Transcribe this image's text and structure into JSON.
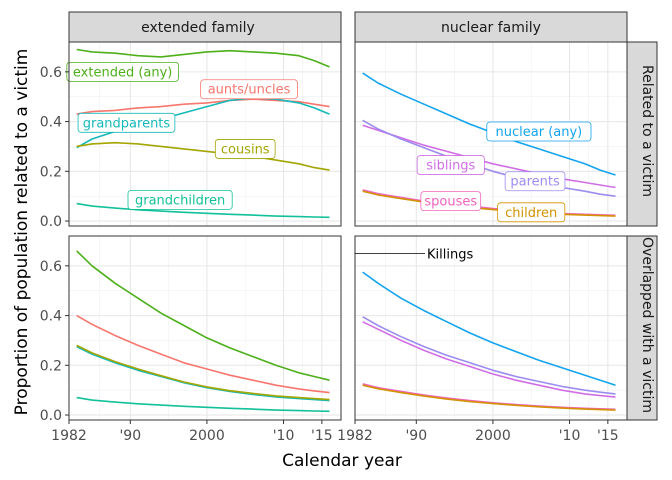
{
  "chart_data": {
    "type": "line",
    "ylabel": "Proportion of population related to a victim",
    "xlabel": "Calendar year",
    "xlim": [
      1982,
      2017.5
    ],
    "ylim": [
      -0.02,
      0.72
    ],
    "x_ticks": [
      {
        "value": 1982,
        "label": "1982"
      },
      {
        "value": 1990,
        "label": "'90"
      },
      {
        "value": 2000,
        "label": "2000"
      },
      {
        "value": 2010,
        "label": "'10"
      },
      {
        "value": 2015,
        "label": "'15"
      }
    ],
    "y_ticks": [
      {
        "value": 0.0,
        "label": "0.0"
      },
      {
        "value": 0.2,
        "label": "0.2"
      },
      {
        "value": 0.4,
        "label": "0.4"
      },
      {
        "value": 0.6,
        "label": "0.6"
      }
    ],
    "col_strips": [
      "extended family",
      "nuclear family"
    ],
    "row_strips": [
      "Related to a victim",
      "Overlapped with a victim"
    ],
    "vline_year": 1982,
    "annotation": {
      "text": "Killings",
      "x": 1982,
      "y": 0.65
    },
    "colors": {
      "extended": "#4daf1a",
      "aunts": "#f8766d",
      "grandparents": "#16b8b8",
      "cousins": "#a3a500",
      "grandchildren": "#12c09a",
      "nuclear": "#13a4f0",
      "siblings": "#d16ee6",
      "parents": "#9b8cf0",
      "spouses": "#f063c0",
      "children": "#d39200"
    },
    "panels": [
      {
        "id": "extended-related",
        "col": 0,
        "row": 0,
        "series": [
          {
            "name": "extended (any)",
            "color_key": "extended",
            "label": "extended (any)",
            "label_at": [
              1989,
              0.6
            ],
            "x": [
              1983,
              1985,
              1988,
              1991,
              1994,
              1997,
              2000,
              2003,
              2006,
              2009,
              2012,
              2014,
              2016
            ],
            "y": [
              0.69,
              0.68,
              0.675,
              0.665,
              0.66,
              0.67,
              0.68,
              0.685,
              0.68,
              0.675,
              0.665,
              0.645,
              0.62
            ]
          },
          {
            "name": "aunts/uncles",
            "color_key": "aunts",
            "label": "aunts/uncles",
            "label_at": [
              2005.5,
              0.53
            ],
            "x": [
              1983,
              1985,
              1988,
              1991,
              1994,
              1997,
              2000,
              2003,
              2006,
              2009,
              2012,
              2014,
              2016
            ],
            "y": [
              0.43,
              0.44,
              0.445,
              0.455,
              0.46,
              0.47,
              0.475,
              0.485,
              0.49,
              0.485,
              0.48,
              0.47,
              0.46
            ]
          },
          {
            "name": "grandparents",
            "color_key": "grandparents",
            "label": "grandparents",
            "label_at": [
              1989.5,
              0.395
            ],
            "x": [
              1983,
              1985,
              1988,
              1991,
              1994,
              1997,
              2000,
              2003,
              2006,
              2009,
              2012,
              2014,
              2016
            ],
            "y": [
              0.295,
              0.33,
              0.36,
              0.385,
              0.41,
              0.435,
              0.46,
              0.485,
              0.495,
              0.49,
              0.475,
              0.455,
              0.43
            ]
          },
          {
            "name": "cousins",
            "color_key": "cousins",
            "label": "cousins",
            "label_at": [
              2005,
              0.29
            ],
            "x": [
              1983,
              1985,
              1988,
              1991,
              1994,
              1997,
              2000,
              2003,
              2006,
              2009,
              2012,
              2014,
              2016
            ],
            "y": [
              0.3,
              0.31,
              0.315,
              0.31,
              0.3,
              0.29,
              0.28,
              0.27,
              0.26,
              0.245,
              0.23,
              0.215,
              0.205
            ]
          },
          {
            "name": "grandchildren",
            "color_key": "grandchildren",
            "label": "grandchildren",
            "label_at": [
              1996.5,
              0.085
            ],
            "x": [
              1983,
              1985,
              1988,
              1991,
              1994,
              1997,
              2000,
              2003,
              2006,
              2009,
              2012,
              2014,
              2016
            ],
            "y": [
              0.07,
              0.06,
              0.052,
              0.045,
              0.04,
              0.035,
              0.031,
              0.027,
              0.024,
              0.02,
              0.018,
              0.016,
              0.015
            ]
          }
        ]
      },
      {
        "id": "nuclear-related",
        "col": 1,
        "row": 0,
        "series": [
          {
            "name": "nuclear (any)",
            "color_key": "nuclear",
            "label": "nuclear (any)",
            "label_at": [
              2006,
              0.36
            ],
            "x": [
              1983,
              1985,
              1988,
              1991,
              1994,
              1997,
              2000,
              2003,
              2006,
              2009,
              2012,
              2014,
              2016
            ],
            "y": [
              0.595,
              0.555,
              0.51,
              0.47,
              0.43,
              0.39,
              0.355,
              0.32,
              0.29,
              0.26,
              0.23,
              0.205,
              0.185
            ]
          },
          {
            "name": "siblings",
            "color_key": "siblings",
            "label": "siblings",
            "label_at": [
              1994.5,
              0.225
            ],
            "x": [
              1983,
              1985,
              1988,
              1991,
              1994,
              1997,
              2000,
              2003,
              2006,
              2009,
              2012,
              2014,
              2016
            ],
            "y": [
              0.385,
              0.365,
              0.335,
              0.305,
              0.28,
              0.255,
              0.23,
              0.21,
              0.19,
              0.17,
              0.155,
              0.145,
              0.135
            ]
          },
          {
            "name": "parents",
            "color_key": "parents",
            "label": "parents",
            "label_at": [
              2005.5,
              0.16
            ],
            "x": [
              1983,
              1985,
              1988,
              1991,
              1994,
              1997,
              2000,
              2003,
              2006,
              2009,
              2012,
              2014,
              2016
            ],
            "y": [
              0.405,
              0.37,
              0.33,
              0.295,
              0.26,
              0.23,
              0.2,
              0.175,
              0.155,
              0.135,
              0.12,
              0.108,
              0.1
            ]
          },
          {
            "name": "spouses",
            "color_key": "spouses",
            "label": "spouses",
            "label_at": [
              1994.5,
              0.08
            ],
            "x": [
              1983,
              1985,
              1988,
              1991,
              1994,
              1997,
              2000,
              2003,
              2006,
              2009,
              2012,
              2014,
              2016
            ],
            "y": [
              0.125,
              0.11,
              0.095,
              0.08,
              0.07,
              0.06,
              0.05,
              0.043,
              0.036,
              0.03,
              0.027,
              0.025,
              0.023
            ]
          },
          {
            "name": "children",
            "color_key": "children",
            "label": "children",
            "label_at": [
              2005,
              0.035
            ],
            "x": [
              1983,
              1985,
              1988,
              1991,
              1994,
              1997,
              2000,
              2003,
              2006,
              2009,
              2012,
              2014,
              2016
            ],
            "y": [
              0.12,
              0.105,
              0.09,
              0.076,
              0.065,
              0.055,
              0.046,
              0.039,
              0.032,
              0.027,
              0.024,
              0.022,
              0.02
            ]
          }
        ]
      },
      {
        "id": "extended-overlapped",
        "col": 0,
        "row": 1,
        "series": [
          {
            "name": "extended (any)",
            "color_key": "extended",
            "x": [
              1983,
              1985,
              1988,
              1991,
              1994,
              1997,
              2000,
              2003,
              2006,
              2009,
              2012,
              2014,
              2016
            ],
            "y": [
              0.66,
              0.6,
              0.53,
              0.47,
              0.41,
              0.36,
              0.31,
              0.27,
              0.235,
              0.2,
              0.17,
              0.155,
              0.14
            ]
          },
          {
            "name": "aunts/uncles",
            "color_key": "aunts",
            "x": [
              1983,
              1985,
              1988,
              1991,
              1994,
              1997,
              2000,
              2003,
              2006,
              2009,
              2012,
              2014,
              2016
            ],
            "y": [
              0.4,
              0.365,
              0.32,
              0.28,
              0.245,
              0.21,
              0.185,
              0.16,
              0.14,
              0.12,
              0.105,
              0.097,
              0.09
            ]
          },
          {
            "name": "grandparents",
            "color_key": "grandparents",
            "x": [
              1983,
              1985,
              1988,
              1991,
              1994,
              1997,
              2000,
              2003,
              2006,
              2009,
              2012,
              2014,
              2016
            ],
            "y": [
              0.275,
              0.245,
              0.21,
              0.18,
              0.155,
              0.13,
              0.11,
              0.095,
              0.083,
              0.073,
              0.066,
              0.062,
              0.058
            ]
          },
          {
            "name": "cousins",
            "color_key": "cousins",
            "x": [
              1983,
              1985,
              1988,
              1991,
              1994,
              1997,
              2000,
              2003,
              2006,
              2009,
              2012,
              2014,
              2016
            ],
            "y": [
              0.28,
              0.25,
              0.215,
              0.185,
              0.158,
              0.133,
              0.113,
              0.098,
              0.087,
              0.077,
              0.07,
              0.066,
              0.062
            ]
          },
          {
            "name": "grandchildren",
            "color_key": "grandchildren",
            "x": [
              1983,
              1985,
              1988,
              1991,
              1994,
              1997,
              2000,
              2003,
              2006,
              2009,
              2012,
              2014,
              2016
            ],
            "y": [
              0.07,
              0.06,
              0.052,
              0.045,
              0.04,
              0.035,
              0.031,
              0.027,
              0.024,
              0.02,
              0.018,
              0.016,
              0.015
            ]
          }
        ]
      },
      {
        "id": "nuclear-overlapped",
        "col": 1,
        "row": 1,
        "series": [
          {
            "name": "nuclear (any)",
            "color_key": "nuclear",
            "x": [
              1983,
              1985,
              1988,
              1991,
              1994,
              1997,
              2000,
              2003,
              2006,
              2009,
              2012,
              2014,
              2016
            ],
            "y": [
              0.575,
              0.53,
              0.47,
              0.42,
              0.375,
              0.33,
              0.29,
              0.255,
              0.22,
              0.19,
              0.16,
              0.14,
              0.12
            ]
          },
          {
            "name": "siblings",
            "color_key": "siblings",
            "x": [
              1983,
              1985,
              1988,
              1991,
              1994,
              1997,
              2000,
              2003,
              2006,
              2009,
              2012,
              2014,
              2016
            ],
            "y": [
              0.375,
              0.345,
              0.3,
              0.26,
              0.225,
              0.195,
              0.165,
              0.14,
              0.12,
              0.1,
              0.085,
              0.078,
              0.072
            ]
          },
          {
            "name": "parents",
            "color_key": "parents",
            "x": [
              1983,
              1985,
              1988,
              1991,
              1994,
              1997,
              2000,
              2003,
              2006,
              2009,
              2012,
              2014,
              2016
            ],
            "y": [
              0.395,
              0.36,
              0.315,
              0.275,
              0.24,
              0.21,
              0.18,
              0.155,
              0.135,
              0.115,
              0.1,
              0.092,
              0.085
            ]
          },
          {
            "name": "spouses",
            "color_key": "spouses",
            "x": [
              1983,
              1985,
              1988,
              1991,
              1994,
              1997,
              2000,
              2003,
              2006,
              2009,
              2012,
              2014,
              2016
            ],
            "y": [
              0.125,
              0.11,
              0.095,
              0.08,
              0.068,
              0.058,
              0.049,
              0.042,
              0.036,
              0.031,
              0.027,
              0.025,
              0.023
            ]
          },
          {
            "name": "children",
            "color_key": "children",
            "x": [
              1983,
              1985,
              1988,
              1991,
              1994,
              1997,
              2000,
              2003,
              2006,
              2009,
              2012,
              2014,
              2016
            ],
            "y": [
              0.12,
              0.106,
              0.09,
              0.076,
              0.064,
              0.054,
              0.046,
              0.039,
              0.033,
              0.028,
              0.024,
              0.022,
              0.02
            ]
          }
        ]
      }
    ]
  }
}
